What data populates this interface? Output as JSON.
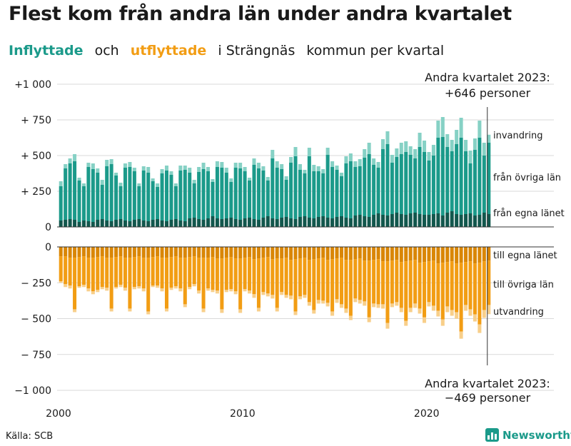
{
  "header": {
    "title": "Flest kom från andra län under andra kvartalet",
    "subtitle_in": "Inflyttade",
    "subtitle_and": "och",
    "subtitle_out": "utflyttade",
    "subtitle_place": "i Strängnäs",
    "subtitle_rest": "kommun per kvartal"
  },
  "footer": {
    "source": "Källa: SCB",
    "brand": "Newsworthy"
  },
  "colors": {
    "in_local": "#12574d",
    "in_other": "#1b9a8a",
    "in_immig": "#86d1c5",
    "out_local": "#d98606",
    "out_other": "#f29d14",
    "out_emig": "#f8cf8a",
    "grid": "#d9d9d9",
    "axis": "#333333"
  },
  "chart_data": {
    "type": "bar",
    "stacked": true,
    "diverging": true,
    "start_year": 2000,
    "start_quarter": 1,
    "quarters": 94,
    "ylim": [
      -1000,
      1000
    ],
    "yticks": [
      {
        "value": 1000,
        "label": "+1 000"
      },
      {
        "value": 750,
        "label": "+  750"
      },
      {
        "value": 500,
        "label": "+  500"
      },
      {
        "value": 250,
        "label": "+  250"
      },
      {
        "value": 0,
        "label": "0"
      },
      {
        "value": -250,
        "label": "−  250"
      },
      {
        "value": -500,
        "label": "−  500"
      },
      {
        "value": -750,
        "label": "−  750"
      },
      {
        "value": -1000,
        "label": "−1 000"
      }
    ],
    "xticks": [
      {
        "year": 2000,
        "label": "2000"
      },
      {
        "year": 2010,
        "label": "2010"
      },
      {
        "year": 2020,
        "label": "2020"
      }
    ],
    "legend_in": [
      "invandring",
      "från övriga län",
      "från egna länet"
    ],
    "legend_out": [
      "till egna länet",
      "till övriga län",
      "utvandring"
    ],
    "annotation_top": {
      "line1": "Andra kvartalet 2023:",
      "line2": "+646 personer"
    },
    "annotation_bottom": {
      "line1": "Andra kvartalet 2023:",
      "line2": "−469 personer"
    },
    "series": [
      {
        "name": "från egna länet",
        "values": [
          45,
          50,
          55,
          50,
          35,
          45,
          40,
          35,
          50,
          55,
          45,
          40,
          50,
          55,
          45,
          40,
          50,
          55,
          45,
          40,
          50,
          55,
          45,
          40,
          50,
          55,
          45,
          40,
          60,
          65,
          55,
          50,
          60,
          75,
          60,
          55,
          60,
          65,
          55,
          50,
          60,
          65,
          55,
          50,
          65,
          75,
          60,
          55,
          65,
          70,
          60,
          55,
          70,
          75,
          65,
          60,
          70,
          75,
          65,
          60,
          70,
          75,
          65,
          60,
          80,
          85,
          75,
          70,
          85,
          95,
          85,
          80,
          90,
          100,
          90,
          85,
          95,
          100,
          90,
          85,
          85,
          90,
          95,
          80,
          100,
          110,
          90,
          85,
          90,
          95,
          80,
          85,
          100,
          90
        ]
      },
      {
        "name": "från övriga län",
        "values": [
          240,
          360,
          390,
          410,
          290,
          240,
          380,
          370,
          330,
          240,
          380,
          400,
          310,
          230,
          370,
          380,
          340,
          230,
          350,
          340,
          270,
          225,
          330,
          355,
          315,
          230,
          350,
          360,
          320,
          240,
          330,
          355,
          330,
          240,
          360,
          360,
          320,
          250,
          360,
          360,
          330,
          260,
          380,
          360,
          330,
          250,
          420,
          360,
          340,
          260,
          390,
          440,
          330,
          300,
          430,
          330,
          320,
          300,
          440,
          360,
          330,
          280,
          380,
          400,
          340,
          340,
          410,
          440,
          350,
          320,
          460,
          500,
          360,
          390,
          420,
          440,
          410,
          380,
          470,
          440,
          380,
          410,
          530,
          550,
          460,
          420,
          490,
          540,
          440,
          350,
          460,
          540,
          400,
          500
        ]
      },
      {
        "name": "invandring",
        "values": [
          35,
          30,
          35,
          50,
          20,
          20,
          30,
          40,
          30,
          35,
          45,
          35,
          20,
          25,
          30,
          35,
          25,
          20,
          30,
          40,
          20,
          25,
          30,
          35,
          25,
          20,
          35,
          30,
          35,
          25,
          35,
          45,
          30,
          20,
          40,
          40,
          35,
          25,
          35,
          40,
          30,
          20,
          45,
          40,
          30,
          25,
          60,
          45,
          35,
          25,
          40,
          65,
          40,
          25,
          60,
          45,
          35,
          30,
          50,
          40,
          30,
          25,
          50,
          55,
          40,
          50,
          60,
          80,
          45,
          40,
          70,
          90,
          55,
          60,
          80,
          75,
          60,
          65,
          100,
          80,
          60,
          75,
          120,
          140,
          90,
          80,
          100,
          140,
          80,
          90,
          80,
          120,
          90,
          56
        ]
      },
      {
        "name": "till egna länet",
        "values": [
          -65,
          -65,
          -75,
          -75,
          -70,
          -65,
          -75,
          -75,
          -70,
          -65,
          -75,
          -75,
          -70,
          -65,
          -75,
          -75,
          -70,
          -65,
          -75,
          -75,
          -70,
          -65,
          -75,
          -75,
          -70,
          -65,
          -75,
          -75,
          -70,
          -65,
          -75,
          -75,
          -75,
          -70,
          -80,
          -80,
          -75,
          -70,
          -80,
          -80,
          -75,
          -70,
          -85,
          -80,
          -75,
          -70,
          -85,
          -80,
          -80,
          -75,
          -90,
          -85,
          -80,
          -75,
          -90,
          -85,
          -80,
          -75,
          -90,
          -85,
          -80,
          -75,
          -90,
          -90,
          -85,
          -80,
          -95,
          -95,
          -90,
          -85,
          -100,
          -100,
          -95,
          -90,
          -105,
          -100,
          -95,
          -90,
          -110,
          -105,
          -100,
          -95,
          -115,
          -110,
          -105,
          -100,
          -115,
          -110,
          -105,
          -100,
          -115,
          -110,
          -100,
          -95
        ]
      },
      {
        "name": "till övriga län",
        "values": [
          -175,
          -195,
          -195,
          -360,
          -205,
          -200,
          -215,
          -235,
          -230,
          -215,
          -210,
          -355,
          -210,
          -200,
          -210,
          -355,
          -210,
          -210,
          -215,
          -375,
          -200,
          -205,
          -215,
          -355,
          -215,
          -210,
          -215,
          -325,
          -210,
          -195,
          -230,
          -355,
          -215,
          -230,
          -225,
          -355,
          -225,
          -225,
          -230,
          -355,
          -220,
          -235,
          -245,
          -345,
          -240,
          -255,
          -250,
          -345,
          -235,
          -260,
          -250,
          -365,
          -265,
          -260,
          -295,
          -355,
          -290,
          -300,
          -300,
          -365,
          -285,
          -325,
          -340,
          -390,
          -275,
          -290,
          -285,
          -395,
          -305,
          -315,
          -300,
          -430,
          -300,
          -295,
          -320,
          -415,
          -330,
          -305,
          -320,
          -385,
          -285,
          -315,
          -330,
          -395,
          -310,
          -340,
          -340,
          -480,
          -300,
          -335,
          -355,
          -430,
          -340,
          -310
        ]
      },
      {
        "name": "utvandring",
        "values": [
          -10,
          -20,
          -20,
          -20,
          -10,
          -15,
          -20,
          -20,
          -15,
          -15,
          -20,
          -20,
          -10,
          -15,
          -20,
          -20,
          -15,
          -15,
          -20,
          -20,
          -10,
          -15,
          -20,
          -20,
          -15,
          -15,
          -20,
          -20,
          -15,
          -15,
          -20,
          -25,
          -15,
          -15,
          -20,
          -25,
          -15,
          -15,
          -20,
          -25,
          -15,
          -20,
          -25,
          -25,
          -20,
          -20,
          -25,
          -25,
          -20,
          -20,
          -25,
          -25,
          -20,
          -20,
          -25,
          -25,
          -25,
          -20,
          -25,
          -30,
          -25,
          -25,
          -30,
          -30,
          -25,
          -25,
          -30,
          -35,
          -25,
          -25,
          -30,
          -40,
          -25,
          -25,
          -30,
          -35,
          -30,
          -30,
          -35,
          -40,
          -30,
          -35,
          -40,
          -45,
          -40,
          -40,
          -45,
          -50,
          -40,
          -45,
          -50,
          -60,
          -55,
          -64
        ]
      }
    ]
  }
}
